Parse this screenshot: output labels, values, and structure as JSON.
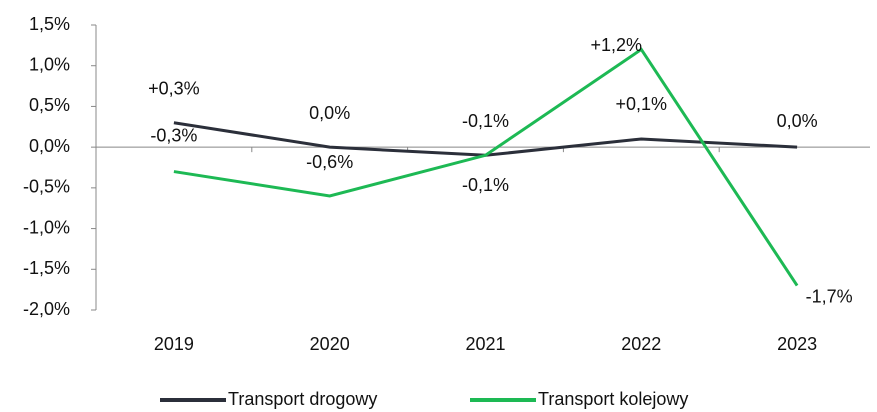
{
  "chart_data": {
    "type": "line",
    "categories": [
      "2019",
      "2020",
      "2021",
      "2022",
      "2023"
    ],
    "series": [
      {
        "name": "Transport drogowy",
        "color": "#2b2f3a",
        "values": [
          0.3,
          0.0,
          -0.1,
          0.1,
          0.0
        ],
        "value_labels": [
          "+0,3%",
          "0,0%",
          "-0,1%",
          "+0,1%",
          "0,0%"
        ]
      },
      {
        "name": "Transport kolejowy",
        "color": "#1db954",
        "values": [
          -0.3,
          -0.6,
          -0.1,
          1.2,
          -1.7
        ],
        "value_labels": [
          "-0,3%",
          "-0,6%",
          "-0,1%",
          "+1,2%",
          "-1,7%"
        ]
      }
    ],
    "ylim": [
      -2.0,
      1.5
    ],
    "yticks": [
      {
        "value": -2.0,
        "label": "-2,0%"
      },
      {
        "value": -1.5,
        "label": "-1,5%"
      },
      {
        "value": -1.0,
        "label": "-1,0%"
      },
      {
        "value": -0.5,
        "label": "-0,5%"
      },
      {
        "value": 0.0,
        "label": "0,0%"
      },
      {
        "value": 0.5,
        "label": "0,5%"
      },
      {
        "value": 1.0,
        "label": "1,0%"
      },
      {
        "value": 1.5,
        "label": "1,5%"
      }
    ],
    "legend": "bottom"
  }
}
